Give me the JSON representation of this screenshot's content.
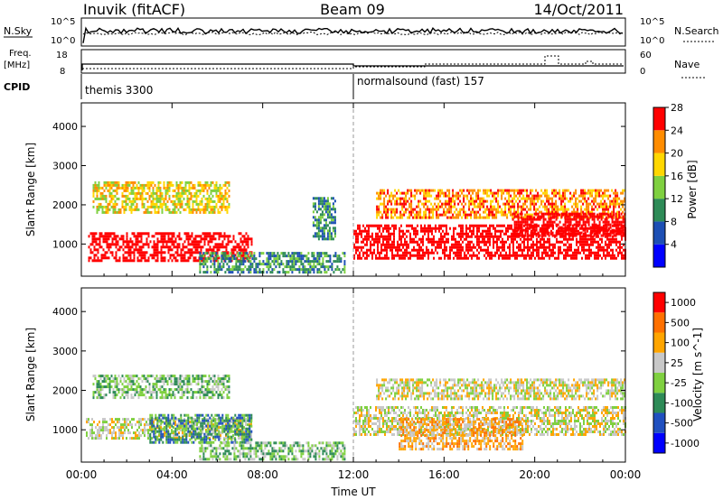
{
  "header": {
    "station": "Inuvik (fitACF)",
    "beam": "Beam 09",
    "date": "14/Oct/2011"
  },
  "summary": {
    "nsky_label": "N.Sky",
    "nsky_ticks": [
      "10^5",
      "10^0"
    ],
    "nsearch_label": "N.Search",
    "nsearch_ticks": [
      "10^5",
      "10^0"
    ],
    "freq_label": "Freq.",
    "freq_unit": "[MHz]",
    "freq_ticks": [
      "18",
      "8"
    ],
    "nave_label": "Nave",
    "nave_ticks": [
      "60",
      "0"
    ],
    "cpid_label": "CPID",
    "cpid_segments": [
      {
        "name": "themis 3300",
        "start_hour": 0
      },
      {
        "name": "normalsound (fast) 157",
        "start_hour": 12
      }
    ]
  },
  "chart_data": [
    {
      "type": "heatmap",
      "panel": "power",
      "xlabel": "",
      "ylabel": "Slant Range [km]",
      "xlim": [
        0,
        24
      ],
      "ylim": [
        180,
        4600
      ],
      "y_ticks": [
        1000,
        2000,
        3000,
        4000
      ],
      "colorbar_label": "Power [dB]",
      "colorbar_ticks": [
        "4",
        "8",
        "12",
        "16",
        "20",
        "24",
        "28"
      ],
      "colorbar_colors": [
        "#0000ff",
        "#1d4fb4",
        "#2e8b57",
        "#7fd040",
        "#ffd700",
        "#ff8c00",
        "#ff0000"
      ],
      "regions": [
        {
          "x0": 0.3,
          "x1": 7.5,
          "y0": 600,
          "y1": 1300,
          "level": 7
        },
        {
          "x0": 12.0,
          "x1": 24.0,
          "y0": 650,
          "y1": 1500,
          "level": 7
        },
        {
          "x0": 5.2,
          "x1": 11.6,
          "y0": 300,
          "y1": 800,
          "level": 2
        },
        {
          "x0": 0.5,
          "x1": 6.5,
          "y0": 1800,
          "y1": 2600,
          "level": 4
        },
        {
          "x0": 13.0,
          "x1": 24.0,
          "y0": 1700,
          "y1": 2400,
          "level": 5
        },
        {
          "x0": 10.2,
          "x1": 11.2,
          "y0": 1100,
          "y1": 2200,
          "level": 2
        },
        {
          "x0": 19.0,
          "x1": 24.0,
          "y0": 1200,
          "y1": 1800,
          "level": 7
        }
      ]
    },
    {
      "type": "heatmap",
      "panel": "velocity",
      "xlabel": "Time UT",
      "ylabel": "Slant Range [km]",
      "xlim": [
        0,
        24
      ],
      "x_ticks": [
        "00:00",
        "04:00",
        "08:00",
        "12:00",
        "16:00",
        "20:00",
        "00:00"
      ],
      "ylim": [
        180,
        4600
      ],
      "y_ticks": [
        1000,
        2000,
        3000,
        4000
      ],
      "colorbar_label": "Velocity [m s^-1]",
      "colorbar_ticks": [
        "1000",
        "500",
        "100",
        "25",
        "-25",
        "-100",
        "-500",
        "-1000"
      ],
      "colorbar_colors": [
        "#0000ff",
        "#2050c0",
        "#2e8b57",
        "#7fd040",
        "#c8c8c8",
        "#ffa500",
        "#ff7000",
        "#ff0000"
      ],
      "regions": [
        {
          "x0": 0.2,
          "x1": 7.5,
          "y0": 800,
          "y1": 1300,
          "level": 4
        },
        {
          "x0": 3.0,
          "x1": 7.5,
          "y0": 700,
          "y1": 1400,
          "level": 2
        },
        {
          "x0": 5.2,
          "x1": 11.6,
          "y0": 250,
          "y1": 700,
          "level": 3
        },
        {
          "x0": 12.0,
          "x1": 24.0,
          "y0": 900,
          "y1": 1600,
          "level": 4
        },
        {
          "x0": 14.0,
          "x1": 19.5,
          "y0": 500,
          "y1": 1300,
          "level": 5
        },
        {
          "x0": 0.5,
          "x1": 6.5,
          "y0": 1800,
          "y1": 2400,
          "level": 3
        },
        {
          "x0": 13.0,
          "x1": 24.0,
          "y0": 1800,
          "y1": 2300,
          "level": 4
        }
      ]
    }
  ]
}
